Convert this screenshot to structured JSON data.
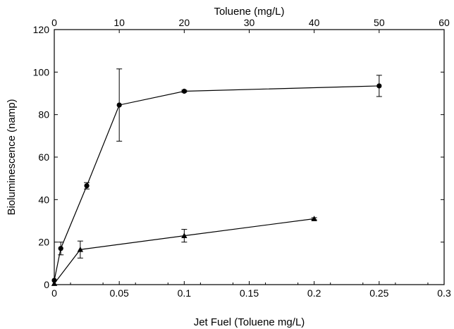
{
  "chart_data": {
    "type": "line",
    "xlabel": "Jet Fuel (Toluene mg/L)",
    "x2label": "Toluene (mg/L)",
    "ylabel": "Bioluminescence (namp)",
    "xlim": [
      0,
      0.3
    ],
    "x2lim": [
      0,
      60
    ],
    "ylim": [
      0,
      120
    ],
    "xticks": [
      "0",
      "0.05",
      "0.1",
      "0.15",
      "0.2",
      "0.25",
      "0.3"
    ],
    "x2ticks": [
      "0",
      "10",
      "20",
      "30",
      "40",
      "50",
      "60"
    ],
    "yticks": [
      "0",
      "20",
      "40",
      "60",
      "80",
      "100",
      "120"
    ],
    "grid": false,
    "legend": "none",
    "series": [
      {
        "marker": "circle",
        "axis": "bottom",
        "x": [
          0,
          0.005,
          0.025,
          0.05,
          0.1,
          0.25
        ],
        "y": [
          2,
          17,
          46.5,
          84.5,
          91,
          93.5
        ],
        "err": [
          0,
          3,
          1.5,
          17,
          0.5,
          5
        ]
      },
      {
        "marker": "triangle",
        "axis": "top",
        "x": [
          0,
          4,
          20,
          40
        ],
        "y": [
          0.5,
          16.5,
          23,
          31
        ],
        "err": [
          0,
          4,
          3,
          0.5
        ]
      }
    ]
  }
}
